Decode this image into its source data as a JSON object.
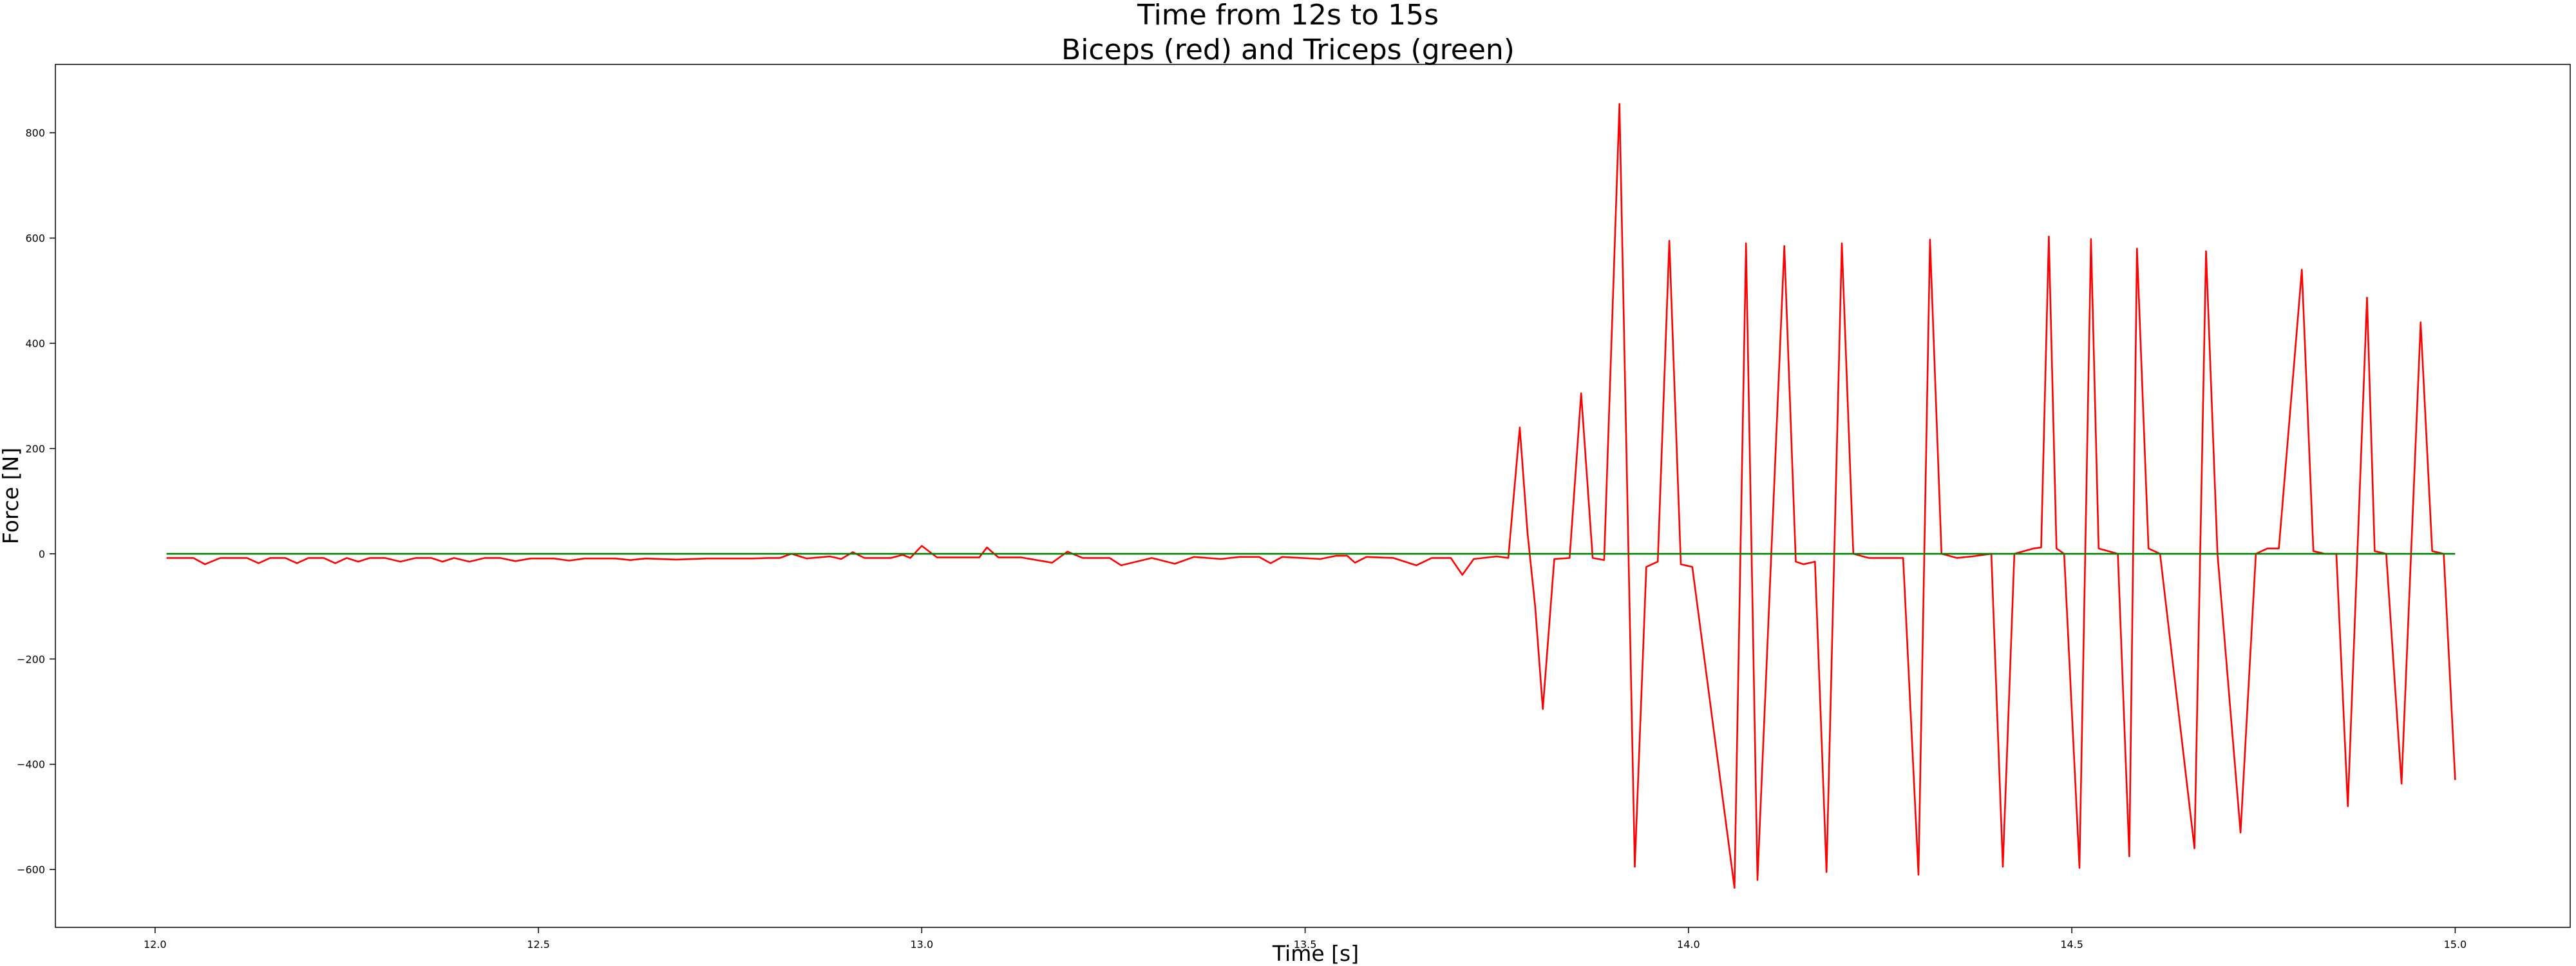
{
  "chart_data": {
    "type": "line",
    "title": "Time from 12s to 15s",
    "subtitle": "Biceps (red) and Triceps (green)",
    "xlabel": "Time [s]",
    "ylabel": "Force [N]",
    "xlim": [
      11.87,
      15.15
    ],
    "ylim": [
      -710,
      930
    ],
    "grid": false,
    "x_ticks": [
      12.0,
      12.5,
      13.0,
      13.5,
      14.0,
      14.5,
      15.0
    ],
    "x_tick_labels": [
      "12.0",
      "12.5",
      "13.0",
      "13.5",
      "14.0",
      "14.5",
      "15.0"
    ],
    "y_ticks": [
      -600,
      -400,
      -200,
      0,
      200,
      400,
      600,
      800
    ],
    "y_tick_labels": [
      "−600",
      "−400",
      "−200",
      "0",
      "200",
      "400",
      "600",
      "800"
    ],
    "series": [
      {
        "color": "#ff0000",
        "points": [
          [
            12.015,
            -8
          ],
          [
            12.05,
            -8
          ],
          [
            12.065,
            -20
          ],
          [
            12.085,
            -8
          ],
          [
            12.12,
            -8
          ],
          [
            12.135,
            -18
          ],
          [
            12.15,
            -8
          ],
          [
            12.17,
            -8
          ],
          [
            12.185,
            -18
          ],
          [
            12.2,
            -8
          ],
          [
            12.22,
            -8
          ],
          [
            12.235,
            -18
          ],
          [
            12.25,
            -8
          ],
          [
            12.265,
            -15
          ],
          [
            12.28,
            -8
          ],
          [
            12.3,
            -8
          ],
          [
            12.32,
            -15
          ],
          [
            12.34,
            -8
          ],
          [
            12.36,
            -8
          ],
          [
            12.375,
            -15
          ],
          [
            12.39,
            -8
          ],
          [
            12.41,
            -15
          ],
          [
            12.43,
            -8
          ],
          [
            12.45,
            -8
          ],
          [
            12.47,
            -14
          ],
          [
            12.49,
            -9
          ],
          [
            12.52,
            -9
          ],
          [
            12.54,
            -13
          ],
          [
            12.56,
            -9
          ],
          [
            12.6,
            -9
          ],
          [
            12.62,
            -12
          ],
          [
            12.64,
            -9
          ],
          [
            12.68,
            -11
          ],
          [
            12.72,
            -9
          ],
          [
            12.78,
            -9
          ],
          [
            12.8,
            -8
          ],
          [
            12.815,
            -8
          ],
          [
            12.83,
            0
          ],
          [
            12.85,
            -9
          ],
          [
            12.88,
            -5
          ],
          [
            12.895,
            -10
          ],
          [
            12.91,
            3
          ],
          [
            12.925,
            -8
          ],
          [
            12.96,
            -8
          ],
          [
            12.975,
            -2
          ],
          [
            12.985,
            -8
          ],
          [
            13.0,
            15
          ],
          [
            13.02,
            -7
          ],
          [
            13.075,
            -7
          ],
          [
            13.085,
            12
          ],
          [
            13.1,
            -7
          ],
          [
            13.13,
            -7
          ],
          [
            13.17,
            -17
          ],
          [
            13.19,
            4
          ],
          [
            13.21,
            -8
          ],
          [
            13.245,
            -8
          ],
          [
            13.26,
            -22
          ],
          [
            13.3,
            -8
          ],
          [
            13.33,
            -19
          ],
          [
            13.355,
            -6
          ],
          [
            13.39,
            -10
          ],
          [
            13.415,
            -6
          ],
          [
            13.44,
            -6
          ],
          [
            13.455,
            -18
          ],
          [
            13.47,
            -6
          ],
          [
            13.52,
            -10
          ],
          [
            13.54,
            -4
          ],
          [
            13.555,
            -4
          ],
          [
            13.565,
            -17
          ],
          [
            13.58,
            -6
          ],
          [
            13.615,
            -8
          ],
          [
            13.645,
            -22
          ],
          [
            13.665,
            -8
          ],
          [
            13.69,
            -8
          ],
          [
            13.705,
            -40
          ],
          [
            13.72,
            -10
          ],
          [
            13.75,
            -5
          ],
          [
            13.765,
            -8
          ],
          [
            13.78,
            240
          ],
          [
            13.79,
            40
          ],
          [
            13.8,
            -100
          ],
          [
            13.81,
            -295
          ],
          [
            13.825,
            -10
          ],
          [
            13.845,
            -8
          ],
          [
            13.86,
            305
          ],
          [
            13.875,
            -8
          ],
          [
            13.89,
            -12
          ],
          [
            13.91,
            855
          ],
          [
            13.93,
            -595
          ],
          [
            13.945,
            -25
          ],
          [
            13.96,
            -15
          ],
          [
            13.975,
            595
          ],
          [
            13.99,
            -20
          ],
          [
            14.005,
            -25
          ],
          [
            14.06,
            -635
          ],
          [
            14.075,
            590
          ],
          [
            14.09,
            -620
          ],
          [
            14.125,
            585
          ],
          [
            14.14,
            -15
          ],
          [
            14.15,
            -20
          ],
          [
            14.165,
            -15
          ],
          [
            14.18,
            -605
          ],
          [
            14.2,
            590
          ],
          [
            14.215,
            0
          ],
          [
            14.235,
            -8
          ],
          [
            14.275,
            -8
          ],
          [
            14.28,
            -8
          ],
          [
            14.3,
            -610
          ],
          [
            14.315,
            597
          ],
          [
            14.33,
            0
          ],
          [
            14.35,
            -8
          ],
          [
            14.37,
            -5
          ],
          [
            14.395,
            0
          ],
          [
            14.41,
            -595
          ],
          [
            14.425,
            0
          ],
          [
            14.45,
            10
          ],
          [
            14.46,
            12
          ],
          [
            14.47,
            603
          ],
          [
            14.48,
            10
          ],
          [
            14.49,
            0
          ],
          [
            14.51,
            -597
          ],
          [
            14.525,
            598
          ],
          [
            14.535,
            10
          ],
          [
            14.56,
            0
          ],
          [
            14.575,
            -575
          ],
          [
            14.585,
            580
          ],
          [
            14.6,
            10
          ],
          [
            14.615,
            0
          ],
          [
            14.66,
            -560
          ],
          [
            14.675,
            575
          ],
          [
            14.69,
            0
          ],
          [
            14.72,
            -530
          ],
          [
            14.74,
            0
          ],
          [
            14.755,
            10
          ],
          [
            14.77,
            10
          ],
          [
            14.8,
            540
          ],
          [
            14.815,
            5
          ],
          [
            14.83,
            0
          ],
          [
            14.845,
            0
          ],
          [
            14.86,
            -480
          ],
          [
            14.885,
            487
          ],
          [
            14.895,
            5
          ],
          [
            14.91,
            0
          ],
          [
            14.93,
            -437
          ],
          [
            14.955,
            440
          ],
          [
            14.97,
            5
          ],
          [
            14.985,
            0
          ],
          [
            15.0,
            -430
          ]
        ]
      },
      {
        "color": "#008000",
        "points": [
          [
            12.015,
            0
          ],
          [
            15.0,
            0
          ]
        ]
      }
    ]
  }
}
